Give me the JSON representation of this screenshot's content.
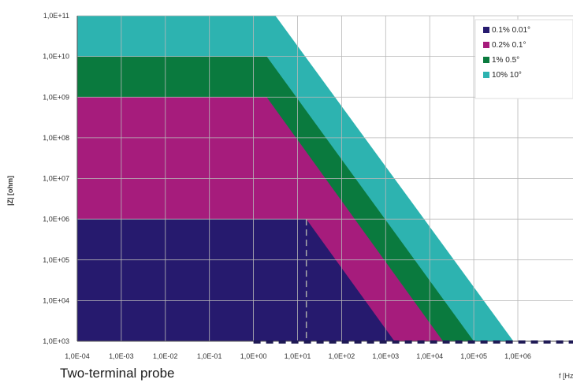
{
  "caption": "Two-terminal probe",
  "chart_data": {
    "type": "area",
    "xscale": "log",
    "yscale": "log",
    "xlim_exp": [
      -4,
      6
    ],
    "ylim_exp": [
      3,
      11
    ],
    "xlabel": "f [Hz]",
    "ylabel": "|Z| [ohm]",
    "x_tick_labels": [
      "1,0E-04",
      "1,0E-03",
      "1,0E-02",
      "1,0E-01",
      "1,0E+00",
      "1,0E+01",
      "1,0E+02",
      "1,0E+03",
      "1,0E+04",
      "1,0E+05",
      "1,0E+06"
    ],
    "y_tick_labels": [
      "1,0E+03",
      "1,0E+04",
      "1,0E+05",
      "1,0E+06",
      "1,0E+07",
      "1,0E+08",
      "1,0E+09",
      "1,0E+10",
      "1,0E+11"
    ],
    "grid": true,
    "legend_position": "top-right",
    "series": [
      {
        "name": "10% 10°",
        "color": "#2db3b0",
        "points_exp": [
          [
            -4,
            11
          ],
          [
            0.5,
            11
          ],
          [
            5.9,
            3
          ],
          [
            -4,
            3
          ]
        ]
      },
      {
        "name": "1% 0.5°",
        "color": "#0a7a3e",
        "points_exp": [
          [
            -4,
            10
          ],
          [
            0.3,
            10
          ],
          [
            5,
            3
          ],
          [
            -4,
            3
          ]
        ]
      },
      {
        "name": "0.2% 0.1°",
        "color": "#a61c7c",
        "points_exp": [
          [
            -4,
            9
          ],
          [
            0.3,
            9
          ],
          [
            4.3,
            3
          ],
          [
            -4,
            3
          ]
        ]
      },
      {
        "name": "0.1% 0.01°",
        "color": "#261a6e",
        "points_exp": [
          [
            -4,
            6
          ],
          [
            1.2,
            6
          ],
          [
            3.2,
            3
          ],
          [
            -4,
            3
          ]
        ]
      }
    ],
    "legend_order": [
      "0.1% 0.01°",
      "0.2% 0.1°",
      "1% 0.5°",
      "10% 10°"
    ],
    "dashed_guides": {
      "color": "#aaaaaa",
      "vertical_at_x_exp": 1.2,
      "baseline_from_x_exp": 0
    }
  }
}
